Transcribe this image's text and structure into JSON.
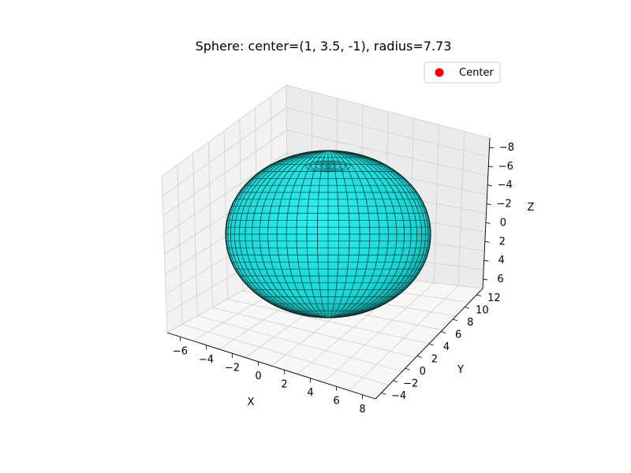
{
  "chart_data": {
    "type": "surface3d",
    "title": "Sphere: center=(1, 3.5, -1), radius=7.73",
    "center": {
      "x": 1,
      "y": 3.5,
      "z": -1
    },
    "radius": 7.73,
    "surface_color": "#00ffff",
    "wire_color": "#000000",
    "center_marker_color": "#ff0000",
    "legend": {
      "position": "top-right",
      "entries": [
        {
          "label": "Center",
          "marker": "circle",
          "color": "#ff0000"
        }
      ]
    },
    "grid": true,
    "pane_colors": {
      "xz_pane": "#f2f2f2",
      "yz_pane": "#ebebeb",
      "floor": "#f7f7f7"
    },
    "x_axis": {
      "label": "X",
      "ticks": [
        "−6",
        "−4",
        "−2",
        "0",
        "2",
        "4",
        "6",
        "8"
      ],
      "range": [
        -7,
        9
      ]
    },
    "y_axis": {
      "label": "Y",
      "ticks": [
        "−4",
        "−2",
        "0",
        "2",
        "4",
        "6",
        "8",
        "10",
        "12"
      ],
      "range": [
        -4.5,
        12.5
      ]
    },
    "z_axis": {
      "label": "Z",
      "ticks": [
        "−8",
        "−6",
        "−4",
        "−2",
        "0",
        "2",
        "4",
        "6"
      ],
      "range": [
        -9,
        7
      ]
    }
  }
}
